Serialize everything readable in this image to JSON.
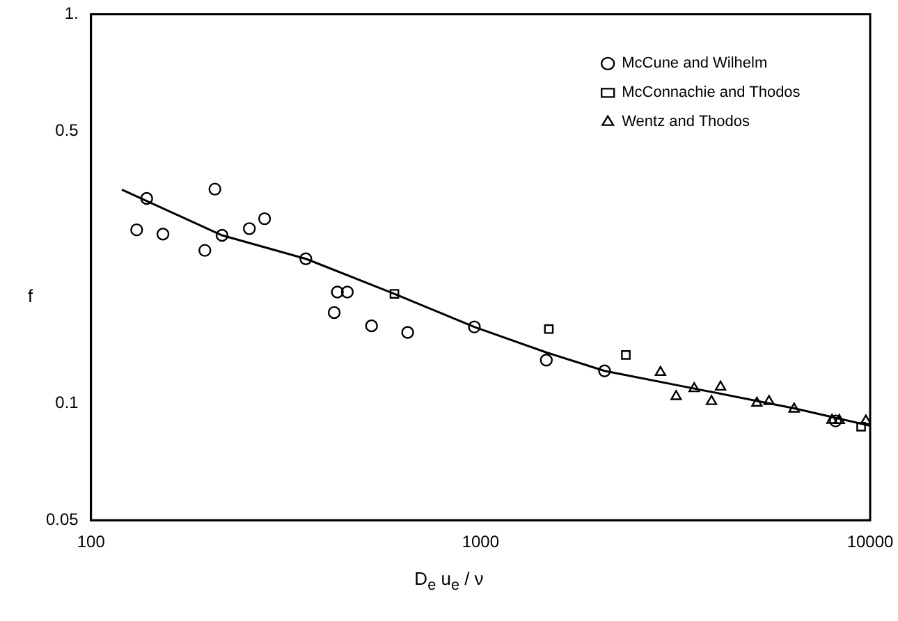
{
  "chart_data": {
    "type": "scatter",
    "xlabel": "D$_{e}$ u$_{e}$ / ν",
    "ylabel": "f",
    "log": "xy",
    "grid": false,
    "legend": "top right",
    "xlim": [
      100,
      10000
    ],
    "xticks": [
      100,
      1000,
      10000
    ],
    "ylim": [
      0.05,
      1
    ],
    "yticks": [
      0.05,
      0.1,
      0.5,
      {
        "value": 1,
        "label": "1."
      }
    ],
    "series": [
      {
        "name": "McCune and Wilhelm",
        "color": "#000000",
        "marker": "circle",
        "x": [
          139,
          131,
          153,
          208,
          196,
          217,
          255,
          279,
          356,
          429,
          455,
          421,
          525,
          650,
          964,
          1475,
          2081,
          8150
        ],
        "values": [
          0.336,
          0.279,
          0.272,
          0.355,
          0.247,
          0.27,
          0.281,
          0.298,
          0.235,
          0.193,
          0.193,
          0.171,
          0.158,
          0.152,
          0.157,
          0.129,
          0.121,
          0.09
        ]
      },
      {
        "name": "McConnachie and Thodos",
        "color": "#000000",
        "marker": "square",
        "x": [
          601,
          1497,
          2360,
          9480
        ],
        "values": [
          0.191,
          0.155,
          0.133,
          0.087
        ]
      },
      {
        "name": "Wentz and Thodos",
        "color": "#000000",
        "marker": "triangle",
        "x": [
          2896,
          3177,
          3535,
          4130,
          3915,
          5120,
          5500,
          6380,
          7980,
          8330,
          9750
        ],
        "values": [
          0.12,
          0.104,
          0.109,
          0.11,
          0.101,
          0.1,
          0.101,
          0.0966,
          0.0904,
          0.0903,
          0.09
        ]
      },
      {
        "type": "line",
        "color": "#000000",
        "marker": "none",
        "line_style": "solid",
        "x": [
          120,
          217,
          356,
          601,
          964,
          1475,
          2081,
          3535,
          6380,
          10000
        ],
        "values": [
          0.354,
          0.27,
          0.235,
          0.191,
          0.157,
          0.135,
          0.121,
          0.109,
          0.097,
          0.0875
        ]
      }
    ]
  }
}
